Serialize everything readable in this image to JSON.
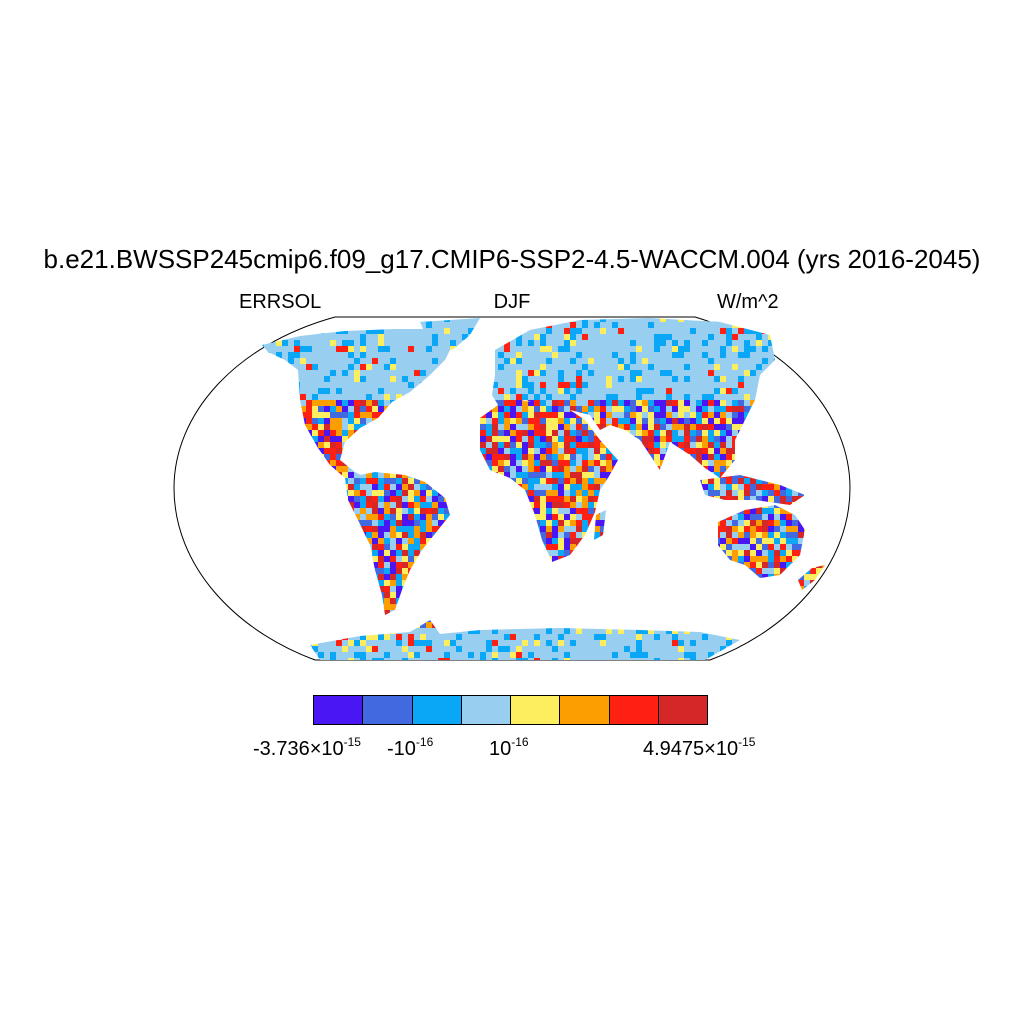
{
  "title": "b.e21.BWSSP245cmip6.f09_g17.CMIP6-SSP2-4.5-WACCM.004 (yrs 2016-2045)",
  "subtitle": {
    "left": "ERRSOL",
    "center": "DJF",
    "right": "W/m^2"
  },
  "colorbar": {
    "colors": [
      "#4a16f4",
      "#4369e0",
      "#0aa7f7",
      "#98cff0",
      "#fdee60",
      "#fd9e00",
      "#fe2012",
      "#d52628"
    ],
    "labels": [
      {
        "mantissa": "-3.736×10",
        "exponent": "-15"
      },
      {
        "mantissa": "-10",
        "exponent": "-16"
      },
      {
        "mantissa": "10",
        "exponent": "-16"
      },
      {
        "mantissa": "4.9475×10",
        "exponent": "-15"
      }
    ]
  },
  "map": {
    "projection": "Robinson",
    "ocean_color": "#ffffff",
    "coastline_color": "#000000"
  }
}
